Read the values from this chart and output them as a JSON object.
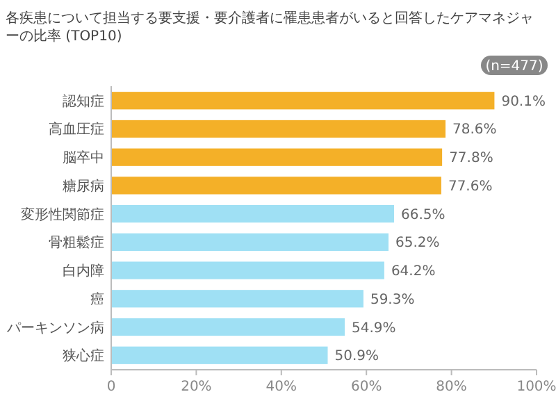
{
  "chart_data": {
    "type": "bar",
    "orientation": "horizontal",
    "title": "各疾患について担当する要支援・要介護者に罹患患者がいると回答したケアマネジャーの比率 (TOP10)",
    "annotations": [
      "(n=477)"
    ],
    "categories": [
      "認知症",
      "高血圧症",
      "脳卒中",
      "糖尿病",
      "変形性関節症",
      "骨粗鬆症",
      "白内障",
      "癌",
      "パーキンソン病",
      "狭心症"
    ],
    "values": [
      90.1,
      78.6,
      77.8,
      77.6,
      66.5,
      65.2,
      64.2,
      59.3,
      54.9,
      50.9
    ],
    "value_labels": [
      "90.1%",
      "78.6%",
      "77.8%",
      "77.6%",
      "66.5%",
      "65.2%",
      "64.2%",
      "59.3%",
      "54.9%",
      "50.9%"
    ],
    "colors": [
      "#f4b028",
      "#f4b028",
      "#f4b028",
      "#f4b028",
      "#9fe0f4",
      "#9fe0f4",
      "#9fe0f4",
      "#9fe0f4",
      "#9fe0f4",
      "#9fe0f4"
    ],
    "xlim": [
      0,
      100
    ],
    "xticks": [
      0,
      {
        "value": 20,
        "label": "20%"
      },
      {
        "value": 40,
        "label": "40%"
      },
      {
        "value": 60,
        "label": "60%"
      },
      {
        "value": 80,
        "label": "80%"
      },
      {
        "value": 100,
        "label": "100%"
      }
    ]
  }
}
